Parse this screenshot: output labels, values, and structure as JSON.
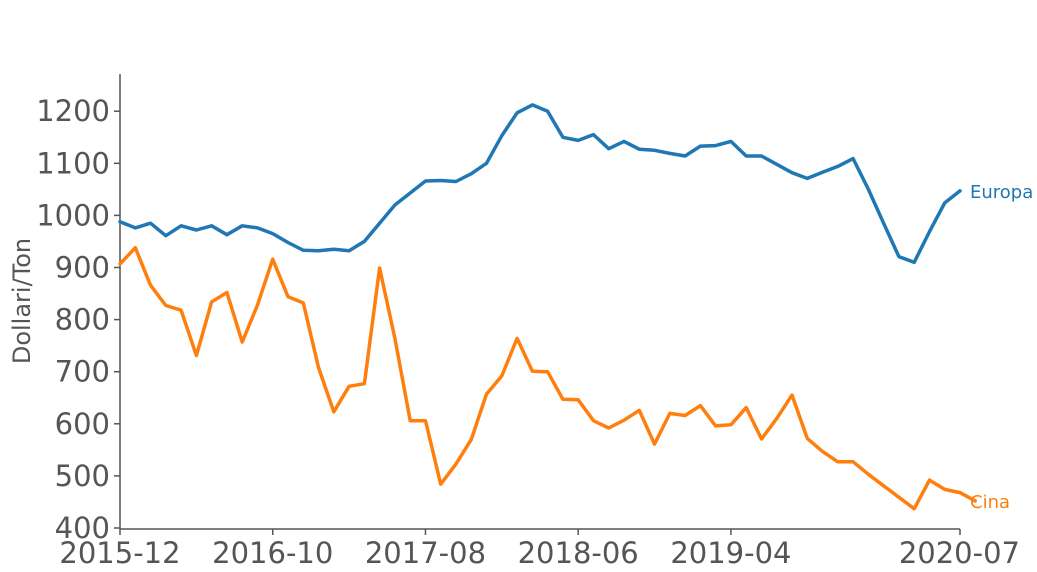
{
  "chart_data": {
    "type": "line",
    "title": "",
    "xlabel": "",
    "ylabel": "Dollari/Ton",
    "ylim": [
      400,
      1250
    ],
    "yticks": [
      400,
      500,
      600,
      700,
      800,
      900,
      1000,
      1100,
      1200
    ],
    "xticks": [
      "2015-12",
      "2016-10",
      "2017-08",
      "2018-06",
      "2019-04",
      "2020-07"
    ],
    "xrange": [
      "2015-12",
      "2020-07"
    ],
    "grid": false,
    "legend": "end-of-line labels",
    "series": [
      {
        "name": "Europa",
        "color": "#1f77b4",
        "points": [
          [
            "2015-12",
            988
          ],
          [
            "2016-01",
            976
          ],
          [
            "2016-02",
            985
          ],
          [
            "2016-03",
            961
          ],
          [
            "2016-04",
            980
          ],
          [
            "2016-05",
            972
          ],
          [
            "2016-06",
            980
          ],
          [
            "2016-07",
            963
          ],
          [
            "2016-08",
            980
          ],
          [
            "2016-09",
            976
          ],
          [
            "2016-10",
            965
          ],
          [
            "2016-11",
            948
          ],
          [
            "2016-12",
            933
          ],
          [
            "2017-01",
            932
          ],
          [
            "2017-02",
            935
          ],
          [
            "2017-03",
            932
          ],
          [
            "2017-04",
            950
          ],
          [
            "2017-05",
            985
          ],
          [
            "2017-06",
            1020
          ],
          [
            "2017-07",
            1043
          ],
          [
            "2017-08",
            1066
          ],
          [
            "2017-09",
            1067
          ],
          [
            "2017-10",
            1065
          ],
          [
            "2017-11",
            1080
          ],
          [
            "2017-12",
            1100
          ],
          [
            "2018-01",
            1153
          ],
          [
            "2018-02",
            1197
          ],
          [
            "2018-03",
            1212
          ],
          [
            "2018-04",
            1200
          ],
          [
            "2018-05",
            1150
          ],
          [
            "2018-06",
            1144
          ],
          [
            "2018-07",
            1155
          ],
          [
            "2018-08",
            1128
          ],
          [
            "2018-09",
            1142
          ],
          [
            "2018-10",
            1127
          ],
          [
            "2018-11",
            1125
          ],
          [
            "2018-12",
            1119
          ],
          [
            "2019-01",
            1114
          ],
          [
            "2019-02",
            1133
          ],
          [
            "2019-03",
            1134
          ],
          [
            "2019-04",
            1142
          ],
          [
            "2019-05",
            1114
          ],
          [
            "2019-06",
            1114
          ],
          [
            "2019-07",
            1098
          ],
          [
            "2019-08",
            1082
          ],
          [
            "2019-09",
            1071
          ],
          [
            "2019-10",
            1083
          ],
          [
            "2019-11",
            1094
          ],
          [
            "2019-12",
            1109
          ],
          [
            "2020-01",
            1050
          ],
          [
            "2020-02",
            985
          ],
          [
            "2020-03",
            921
          ],
          [
            "2020-04",
            910
          ],
          [
            "2020-05",
            969
          ],
          [
            "2020-06",
            1024
          ],
          [
            "2020-07",
            1047
          ]
        ]
      },
      {
        "name": "Cina",
        "color": "#ff7f0e",
        "points": [
          [
            "2015-12",
            907
          ],
          [
            "2016-01",
            938
          ],
          [
            "2016-02",
            866
          ],
          [
            "2016-03",
            827
          ],
          [
            "2016-04",
            818
          ],
          [
            "2016-05",
            731
          ],
          [
            "2016-06",
            834
          ],
          [
            "2016-07",
            852
          ],
          [
            "2016-08",
            757
          ],
          [
            "2016-09",
            828
          ],
          [
            "2016-10",
            916
          ],
          [
            "2016-11",
            844
          ],
          [
            "2016-12",
            832
          ],
          [
            "2017-01",
            708
          ],
          [
            "2017-02",
            623
          ],
          [
            "2017-03",
            672
          ],
          [
            "2017-04",
            677
          ],
          [
            "2017-05",
            899
          ],
          [
            "2017-06",
            764
          ],
          [
            "2017-07",
            606
          ],
          [
            "2017-08",
            606
          ],
          [
            "2017-09",
            484
          ],
          [
            "2017-10",
            523
          ],
          [
            "2017-11",
            570
          ],
          [
            "2017-12",
            657
          ],
          [
            "2018-01",
            692
          ],
          [
            "2018-02",
            764
          ],
          [
            "2018-03",
            701
          ],
          [
            "2018-04",
            700
          ],
          [
            "2018-05",
            647
          ],
          [
            "2018-06",
            646
          ],
          [
            "2018-07",
            606
          ],
          [
            "2018-08",
            592
          ],
          [
            "2018-09",
            607
          ],
          [
            "2018-10",
            626
          ],
          [
            "2018-11",
            561
          ],
          [
            "2018-12",
            620
          ],
          [
            "2019-01",
            616
          ],
          [
            "2019-02",
            635
          ],
          [
            "2019-03",
            596
          ],
          [
            "2019-04",
            598
          ],
          [
            "2019-05",
            631
          ],
          [
            "2019-06",
            571
          ],
          [
            "2019-07",
            610
          ],
          [
            "2019-08",
            655
          ],
          [
            "2019-09",
            572
          ],
          [
            "2019-10",
            547
          ],
          [
            "2019-11",
            527
          ],
          [
            "2019-12",
            527
          ],
          [
            "2020-01",
            503
          ],
          [
            "2020-02",
            481
          ],
          [
            "2020-03",
            459
          ],
          [
            "2020-04",
            437
          ],
          [
            "2020-05",
            492
          ],
          [
            "2020-06",
            474
          ],
          [
            "2020-07",
            468
          ],
          [
            "2020-08",
            452
          ]
        ]
      }
    ]
  }
}
